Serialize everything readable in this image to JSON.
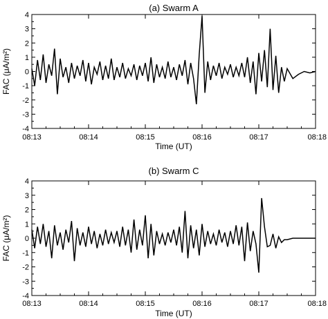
{
  "chart_data": [
    {
      "type": "line",
      "title": "(a) Swarm A",
      "ylabel": "FAC (μA/m²)",
      "xlabel": "Time (UT)",
      "xlim_minutes": [
        13,
        18
      ],
      "ylim": [
        -4,
        4
      ],
      "x_tick_labels": [
        "08:13",
        "08:14",
        "08:15",
        "08:16",
        "08:17",
        "08:18"
      ],
      "y_tick_labels": [
        "-4",
        "-3",
        "-2",
        "-1",
        "0",
        "1",
        "2",
        "3",
        "4"
      ],
      "series": [
        {
          "color": "#000000",
          "x": [
            13.0,
            13.05,
            13.1,
            13.15,
            13.2,
            13.25,
            13.3,
            13.35,
            13.4,
            13.45,
            13.5,
            13.55,
            13.6,
            13.65,
            13.7,
            13.75,
            13.8,
            13.85,
            13.9,
            13.95,
            14.0,
            14.05,
            14.1,
            14.15,
            14.2,
            14.25,
            14.3,
            14.35,
            14.4,
            14.45,
            14.5,
            14.55,
            14.6,
            14.65,
            14.7,
            14.75,
            14.8,
            14.85,
            14.9,
            14.95,
            15.0,
            15.05,
            15.1,
            15.15,
            15.2,
            15.25,
            15.3,
            15.35,
            15.4,
            15.45,
            15.5,
            15.55,
            15.6,
            15.65,
            15.7,
            15.75,
            15.8,
            15.85,
            15.9,
            15.95,
            16.0,
            16.05,
            16.1,
            16.15,
            16.2,
            16.25,
            16.3,
            16.35,
            16.4,
            16.45,
            16.5,
            16.55,
            16.6,
            16.65,
            16.7,
            16.75,
            16.8,
            16.85,
            16.9,
            16.95,
            17.0,
            17.05,
            17.1,
            17.15,
            17.2,
            17.25,
            17.3,
            17.35,
            17.4,
            17.45,
            17.5,
            17.6,
            17.7,
            17.8,
            17.9,
            18.0
          ],
          "y": [
            0.2,
            -1.0,
            0.8,
            -0.6,
            1.2,
            -0.8,
            0.5,
            -0.3,
            1.6,
            -1.6,
            0.9,
            -0.4,
            0.3,
            -0.8,
            0.6,
            -0.5,
            0.4,
            -0.3,
            0.8,
            -0.7,
            0.6,
            -0.9,
            0.3,
            -0.2,
            0.7,
            -0.6,
            0.4,
            -0.5,
            0.9,
            -0.6,
            0.3,
            -0.4,
            0.6,
            -0.5,
            0.2,
            -0.3,
            0.5,
            -0.6,
            0.4,
            -0.3,
            0.6,
            -0.7,
            1.0,
            -0.8,
            0.5,
            -0.4,
            0.3,
            -0.5,
            0.7,
            -0.4,
            0.3,
            -0.6,
            0.5,
            -0.3,
            0.8,
            -0.9,
            0.6,
            -0.5,
            -2.3,
            1.2,
            3.9,
            -1.5,
            0.7,
            -0.6,
            0.4,
            -0.3,
            0.6,
            -0.5,
            0.3,
            -0.2,
            0.5,
            -0.4,
            0.3,
            -0.3,
            0.6,
            -0.4,
            1.0,
            -0.8,
            0.7,
            -1.6,
            1.3,
            -0.7,
            1.5,
            -1.1,
            3.0,
            -1.3,
            1.1,
            -1.5,
            0.3,
            -0.7,
            0.2,
            -0.5,
            -0.2,
            0.0,
            -0.1,
            0.0
          ]
        }
      ]
    },
    {
      "type": "line",
      "title": "(b) Swarm C",
      "ylabel": "FAC (μA/m²)",
      "xlabel": "Time (UT)",
      "xlim_minutes": [
        13,
        18
      ],
      "ylim": [
        -4,
        4
      ],
      "x_tick_labels": [
        "08:13",
        "08:14",
        "08:15",
        "08:16",
        "08:17",
        "08:18"
      ],
      "y_tick_labels": [
        "-4",
        "-3",
        "-2",
        "-1",
        "0",
        "1",
        "2",
        "3",
        "4"
      ],
      "series": [
        {
          "color": "#000000",
          "x": [
            13.0,
            13.05,
            13.1,
            13.15,
            13.2,
            13.25,
            13.3,
            13.35,
            13.4,
            13.45,
            13.5,
            13.55,
            13.6,
            13.65,
            13.7,
            13.75,
            13.8,
            13.85,
            13.9,
            13.95,
            14.0,
            14.05,
            14.1,
            14.15,
            14.2,
            14.25,
            14.3,
            14.35,
            14.4,
            14.45,
            14.5,
            14.55,
            14.6,
            14.65,
            14.7,
            14.75,
            14.8,
            14.85,
            14.9,
            14.95,
            15.0,
            15.05,
            15.1,
            15.15,
            15.2,
            15.25,
            15.3,
            15.35,
            15.4,
            15.45,
            15.5,
            15.55,
            15.6,
            15.65,
            15.7,
            15.75,
            15.8,
            15.85,
            15.9,
            15.95,
            16.0,
            16.05,
            16.1,
            16.15,
            16.2,
            16.25,
            16.3,
            16.35,
            16.4,
            16.45,
            16.5,
            16.55,
            16.6,
            16.65,
            16.7,
            16.75,
            16.8,
            16.85,
            16.9,
            16.95,
            17.0,
            17.05,
            17.1,
            17.15,
            17.2,
            17.25,
            17.3,
            17.35,
            17.4,
            17.45,
            17.5,
            17.6,
            17.7,
            17.8,
            17.9,
            18.0
          ],
          "y": [
            0.6,
            -0.7,
            0.8,
            -0.4,
            1.0,
            -0.6,
            0.5,
            -1.4,
            0.9,
            -0.5,
            0.4,
            -0.8,
            0.6,
            -0.3,
            1.2,
            -1.6,
            0.7,
            -0.5,
            0.4,
            -0.6,
            0.8,
            -0.4,
            0.5,
            -0.7,
            0.3,
            -0.5,
            0.6,
            -0.4,
            0.4,
            -0.3,
            0.5,
            -0.6,
            0.8,
            -0.5,
            0.6,
            -1.0,
            1.3,
            -0.8,
            0.6,
            -0.5,
            1.6,
            -1.4,
            1.0,
            -1.2,
            0.5,
            -0.4,
            0.3,
            -0.5,
            0.4,
            -0.3,
            0.6,
            -0.5,
            0.8,
            -1.0,
            1.9,
            -1.4,
            0.9,
            -0.7,
            0.6,
            -1.2,
            1.0,
            -0.6,
            0.5,
            -0.4,
            0.3,
            -0.5,
            0.6,
            -0.3,
            0.4,
            -0.6,
            0.5,
            -0.4,
            0.9,
            -0.5,
            0.8,
            -1.6,
            1.1,
            -0.9,
            0.5,
            -0.4,
            -2.4,
            2.8,
            0.8,
            -0.6,
            -0.5,
            0.3,
            -0.7,
            0.1,
            -0.3,
            -0.1,
            -0.1,
            0.0,
            0.0,
            0.0,
            0.0,
            0.0
          ]
        }
      ]
    }
  ]
}
